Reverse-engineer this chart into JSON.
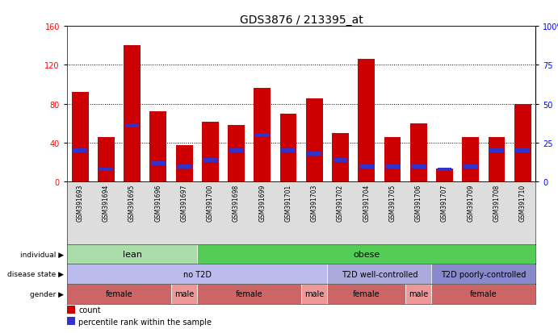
{
  "title": "GDS3876 / 213395_at",
  "samples": [
    "GSM391693",
    "GSM391694",
    "GSM391695",
    "GSM391696",
    "GSM391697",
    "GSM391700",
    "GSM391698",
    "GSM391699",
    "GSM391701",
    "GSM391703",
    "GSM391702",
    "GSM391704",
    "GSM391705",
    "GSM391706",
    "GSM391707",
    "GSM391709",
    "GSM391708",
    "GSM391710"
  ],
  "counts": [
    92,
    46,
    140,
    72,
    38,
    62,
    58,
    96,
    70,
    86,
    50,
    126,
    46,
    60,
    14,
    46,
    46,
    80
  ],
  "percentiles": [
    20,
    8,
    36,
    12,
    10,
    14,
    20,
    30,
    20,
    18,
    14,
    10,
    10,
    10,
    8,
    10,
    20,
    20
  ],
  "ylim_left": [
    0,
    160
  ],
  "ylim_right": [
    0,
    100
  ],
  "yticks_left": [
    0,
    40,
    80,
    120,
    160
  ],
  "yticks_right": [
    0,
    25,
    50,
    75,
    100
  ],
  "bar_color": "#cc0000",
  "dot_color": "#3333cc",
  "background_color": "#ffffff",
  "individual_groups": [
    {
      "label": "lean",
      "start": 0,
      "end": 4,
      "color": "#aaddaa"
    },
    {
      "label": "obese",
      "start": 5,
      "end": 17,
      "color": "#55cc55"
    }
  ],
  "disease_groups": [
    {
      "label": "no T2D",
      "start": 0,
      "end": 9,
      "color": "#bbbbee"
    },
    {
      "label": "T2D well-controlled",
      "start": 10,
      "end": 13,
      "color": "#aaaadd"
    },
    {
      "label": "T2D poorly-controlled",
      "start": 14,
      "end": 17,
      "color": "#8888cc"
    }
  ],
  "gender_groups": [
    {
      "label": "female",
      "start": 0,
      "end": 3,
      "color": "#cc6666"
    },
    {
      "label": "male",
      "start": 4,
      "end": 4,
      "color": "#ee9999"
    },
    {
      "label": "female",
      "start": 5,
      "end": 8,
      "color": "#cc6666"
    },
    {
      "label": "male",
      "start": 9,
      "end": 9,
      "color": "#ee9999"
    },
    {
      "label": "female",
      "start": 10,
      "end": 12,
      "color": "#cc6666"
    },
    {
      "label": "male",
      "start": 13,
      "end": 13,
      "color": "#ee9999"
    },
    {
      "label": "female",
      "start": 14,
      "end": 17,
      "color": "#cc6666"
    }
  ],
  "row_labels": [
    "individual",
    "disease state",
    "gender"
  ],
  "legend_count_label": "count",
  "legend_pct_label": "percentile rank within the sample",
  "title_fontsize": 10,
  "tick_fontsize": 7,
  "label_fontsize": 8,
  "annotation_fontsize": 8
}
